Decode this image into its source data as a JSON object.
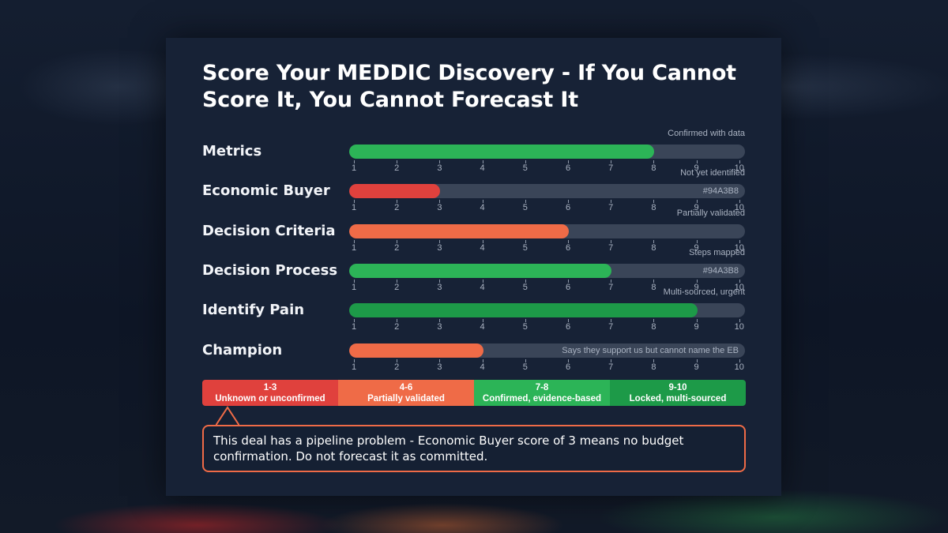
{
  "colors": {
    "red": "#e0413d",
    "orange": "#ef6b47",
    "green": "#2cb457",
    "dark_green": "#1d9a48",
    "track": "#3a4558",
    "card": "#172236"
  },
  "chart_data": {
    "type": "bar",
    "orientation": "horizontal",
    "title": "Score Your MEDDIC Discovery - If You Cannot Score It, You Cannot Forecast It",
    "xlim": [
      1,
      10
    ],
    "ticks": [
      "1",
      "2",
      "3",
      "4",
      "5",
      "6",
      "7",
      "8",
      "9",
      "10"
    ],
    "grid": false,
    "categories": [
      "Metrics",
      "Economic Buyer",
      "Decision Criteria",
      "Decision Process",
      "Identify Pain",
      "Champion"
    ],
    "values": [
      8,
      3,
      6,
      7,
      9,
      4
    ],
    "bars": [
      {
        "label": "Metrics",
        "value": 8,
        "note": "Confirmed with data",
        "inbar": "",
        "color": "#2cb457"
      },
      {
        "label": "Economic Buyer",
        "value": 3,
        "note": "Not yet identified",
        "inbar": "#94A3B8",
        "color": "#e0413d"
      },
      {
        "label": "Decision Criteria",
        "value": 6,
        "note": "Partially validated",
        "inbar": "",
        "color": "#ef6b47"
      },
      {
        "label": "Decision Process",
        "value": 7,
        "note": "Steps mapped",
        "inbar": "#94A3B8",
        "color": "#2cb457"
      },
      {
        "label": "Identify Pain",
        "value": 9,
        "note": "Multi-sourced, urgent",
        "inbar": "",
        "color": "#1d9a48"
      },
      {
        "label": "Champion",
        "value": 4,
        "note": "",
        "inbar": "Says they support us but cannot name the EB",
        "color": "#ef6b47"
      }
    ],
    "legend": [
      {
        "range": "1-3",
        "label": "Unknown or unconfirmed",
        "color": "#e0413d"
      },
      {
        "range": "4-6",
        "label": "Partially validated",
        "color": "#ef6b47"
      },
      {
        "range": "7-8",
        "label": "Confirmed, evidence-based",
        "color": "#2cb457"
      },
      {
        "range": "9-10",
        "label": "Locked, multi-sourced",
        "color": "#1d9a48"
      }
    ],
    "annotation": "This deal has a pipeline problem - Economic Buyer score of 3 means no budget confirmation. Do not forecast it as committed."
  }
}
